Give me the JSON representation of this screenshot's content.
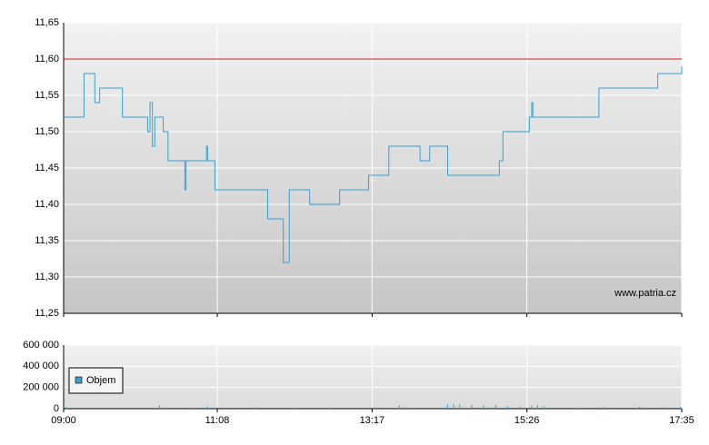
{
  "chart_data": [
    {
      "type": "line",
      "step": true,
      "annotation": "www.patria.cz",
      "x": [
        "09:00",
        "09:17",
        "09:26",
        "09:30",
        "09:49",
        "10:10",
        "10:12",
        "10:14",
        "10:16",
        "10:23",
        "10:27",
        "10:41",
        "10:42",
        "10:59",
        "11:00",
        "11:06",
        "11:50",
        "12:03",
        "12:08",
        "12:25",
        "12:50",
        "13:14",
        "13:31",
        "13:57",
        "14:05",
        "14:20",
        "15:03",
        "15:06",
        "15:28",
        "15:30",
        "15:31",
        "16:26",
        "17:15",
        "17:35"
      ],
      "series": [
        {
          "color": "#3aa0d0",
          "values": [
            11.52,
            11.58,
            11.54,
            11.56,
            11.52,
            11.5,
            11.54,
            11.48,
            11.52,
            11.5,
            11.46,
            11.42,
            11.46,
            11.48,
            11.46,
            11.42,
            11.38,
            11.32,
            11.42,
            11.4,
            11.42,
            11.44,
            11.48,
            11.46,
            11.48,
            11.44,
            11.46,
            11.5,
            11.52,
            11.54,
            11.52,
            11.56,
            11.58,
            11.59
          ]
        }
      ],
      "reference_line": {
        "value": 11.6,
        "color": "#cc2222"
      },
      "xlim": [
        "09:00",
        "17:35"
      ],
      "xticks": [
        "09:00",
        "11:08",
        "13:17",
        "15:26",
        "17:35"
      ],
      "ylim": [
        11.25,
        11.65
      ],
      "yticks": [
        {
          "value": 11.25,
          "label": "11,25"
        },
        {
          "value": 11.3,
          "label": "11,30"
        },
        {
          "value": 11.35,
          "label": "11,35"
        },
        {
          "value": 11.4,
          "label": "11,40"
        },
        {
          "value": 11.45,
          "label": "11,45"
        },
        {
          "value": 11.5,
          "label": "11,50"
        },
        {
          "value": 11.55,
          "label": "11,55"
        },
        {
          "value": 11.6,
          "label": "11,60"
        },
        {
          "value": 11.65,
          "label": "11,65"
        }
      ],
      "grid": true
    },
    {
      "type": "bar",
      "legend": "top-left",
      "x": [
        "09:02",
        "10:20",
        "10:45",
        "11:00",
        "11:40",
        "12:10",
        "12:40",
        "13:20",
        "13:40",
        "13:50",
        "14:20",
        "14:25",
        "14:30",
        "14:40",
        "14:50",
        "15:00",
        "15:10",
        "15:20",
        "15:30",
        "15:35",
        "15:40",
        "16:10",
        "16:30",
        "17:00",
        "17:20",
        "17:34"
      ],
      "series": [
        {
          "name": "Objem",
          "color": "#3aa0d0",
          "values": [
            15000,
            30000,
            10000,
            20000,
            12000,
            8000,
            10000,
            12000,
            30000,
            10000,
            40000,
            45000,
            40000,
            35000,
            30000,
            35000,
            25000,
            20000,
            30000,
            35000,
            25000,
            10000,
            15000,
            20000,
            12000,
            18000
          ]
        }
      ],
      "xlim": [
        "09:00",
        "17:35"
      ],
      "xticks": [
        "09:00",
        "11:08",
        "13:17",
        "15:26",
        "17:35"
      ],
      "ylim": [
        0,
        600000
      ],
      "yticks": [
        0,
        {
          "value": 200000,
          "label": "200 000"
        },
        {
          "value": 400000,
          "label": "400 000"
        },
        {
          "value": 600000,
          "label": "600 000"
        }
      ],
      "grid": true
    }
  ]
}
